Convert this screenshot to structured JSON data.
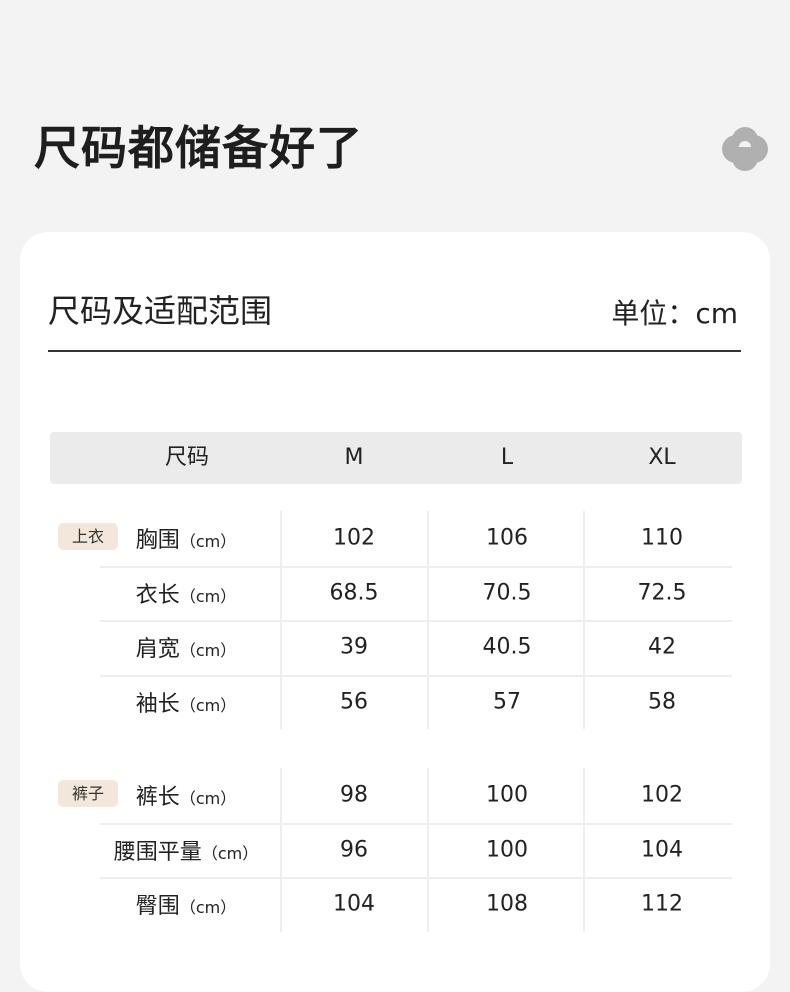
{
  "title": "尺码都储备好了",
  "subtitle": "尺码及适配范围",
  "unit": "单位：cm",
  "header": [
    "尺码",
    "M",
    "L",
    "XL"
  ],
  "groups": [
    {
      "tag": "上衣",
      "rows": [
        {
          "label": "胸围",
          "unit": "（cm）",
          "values": [
            "102",
            "106",
            "110"
          ]
        },
        {
          "label": "衣长",
          "unit": "（cm）",
          "values": [
            "68.5",
            "70.5",
            "72.5"
          ]
        },
        {
          "label": "肩宽",
          "unit": "（cm）",
          "values": [
            "39",
            "40.5",
            "42"
          ]
        },
        {
          "label": "袖长",
          "unit": "（cm）",
          "values": [
            "56",
            "57",
            "58"
          ]
        }
      ]
    },
    {
      "tag": "裤子",
      "rows": [
        {
          "label": "裤长",
          "unit": "（cm）",
          "values": [
            "98",
            "100",
            "102"
          ]
        },
        {
          "label": "腰围平量",
          "unit": "（cm）",
          "values": [
            "96",
            "100",
            "104"
          ]
        },
        {
          "label": "臀围",
          "unit": "（cm）",
          "values": [
            "104",
            "108",
            "112"
          ]
        }
      ]
    }
  ],
  "colors": {
    "tag_bg": "#f3e6da",
    "header_bg": "#ebebeb",
    "logo": "#b0b0b0"
  }
}
